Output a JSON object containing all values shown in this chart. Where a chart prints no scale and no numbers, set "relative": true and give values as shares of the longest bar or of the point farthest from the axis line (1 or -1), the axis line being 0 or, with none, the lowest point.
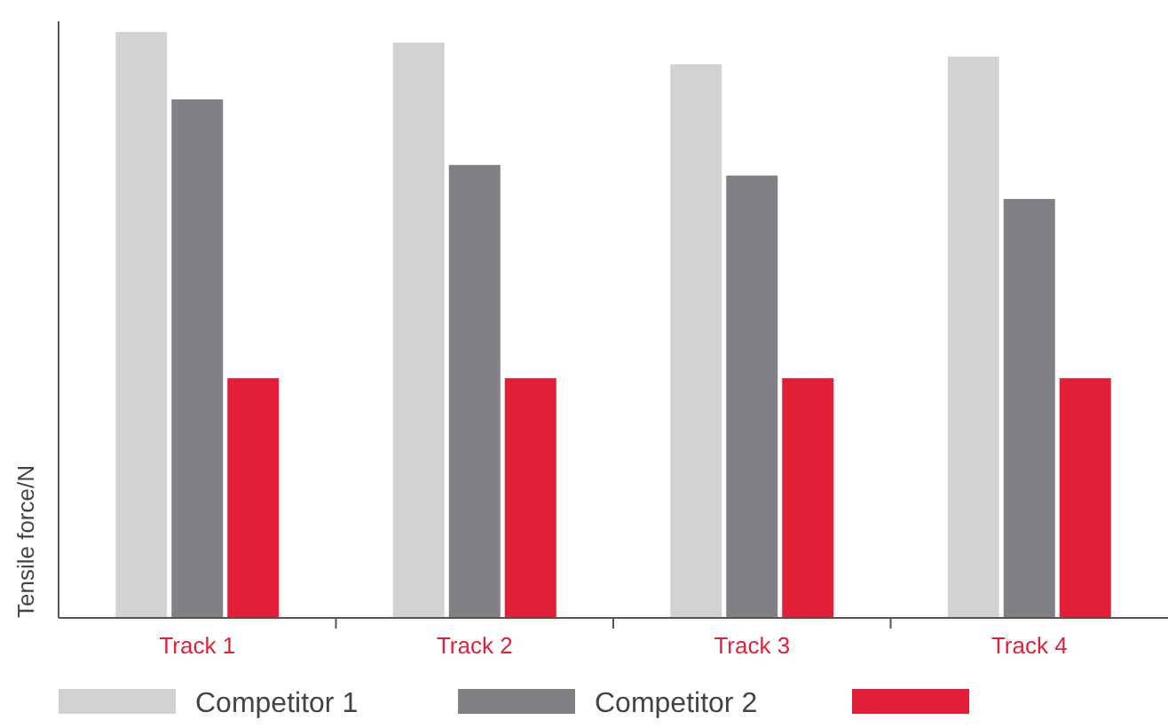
{
  "chart_data": {
    "type": "bar",
    "relative": true,
    "ylabel": "Tensile force/N",
    "categories": [
      "Track 1",
      "Track 2",
      "Track 3",
      "Track 4"
    ],
    "legend": "bottom",
    "series": [
      {
        "name": "Competitor 1",
        "color": "#d1d2d4",
        "values": [
          1,
          0.982,
          0.945,
          0.958
        ]
      },
      {
        "name": "Competitor 2",
        "color": "#808184",
        "values": [
          0.885,
          0.773,
          0.755,
          0.715
        ]
      },
      {
        "color": "#e31e37",
        "values": [
          0.409,
          0.409,
          0.409,
          0.409
        ]
      }
    ]
  }
}
